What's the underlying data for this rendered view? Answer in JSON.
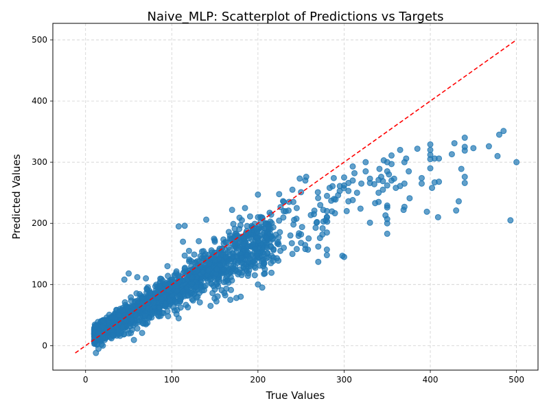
{
  "chart_data": {
    "type": "scatter",
    "title": "Naive_MLP: Scatterplot of Predictions vs Targets",
    "xlabel": "True Values",
    "ylabel": "Predicted Values",
    "xlim": [
      -38,
      525
    ],
    "ylim": [
      -40,
      527
    ],
    "xticks": [
      0,
      100,
      200,
      300,
      400,
      500
    ],
    "yticks": [
      0,
      100,
      200,
      300,
      400,
      500
    ],
    "grid": true,
    "point_color": "#1f77b4",
    "point_alpha": 0.7,
    "reference_line": {
      "color": "#ff0000",
      "style": "dashed",
      "from": [
        -12,
        -12
      ],
      "to": [
        500,
        500
      ]
    },
    "cluster_model": {
      "n_points": 1800,
      "x_min": 10,
      "x_max": 300,
      "slope_at_x": 0.78,
      "intercept": 10
    },
    "points": [
      [
        485,
        351
      ],
      [
        480,
        345
      ],
      [
        500,
        300
      ],
      [
        493,
        205
      ],
      [
        468,
        326
      ],
      [
        478,
        310
      ],
      [
        450,
        323
      ],
      [
        440,
        340
      ],
      [
        440,
        325
      ],
      [
        440,
        319
      ],
      [
        440,
        276
      ],
      [
        440,
        266
      ],
      [
        436,
        289
      ],
      [
        433,
        236
      ],
      [
        430,
        221
      ],
      [
        428,
        331
      ],
      [
        425,
        313
      ],
      [
        410,
        306
      ],
      [
        410,
        268
      ],
      [
        409,
        210
      ],
      [
        405,
        306
      ],
      [
        405,
        267
      ],
      [
        402,
        258
      ],
      [
        400,
        329
      ],
      [
        400,
        320
      ],
      [
        400,
        312
      ],
      [
        400,
        305
      ],
      [
        400,
        290
      ],
      [
        396,
        219
      ],
      [
        390,
        274
      ],
      [
        390,
        265
      ],
      [
        385,
        322
      ],
      [
        376,
        241
      ],
      [
        375,
        285
      ],
      [
        372,
        306
      ],
      [
        370,
        300
      ],
      [
        370,
        265
      ],
      [
        370,
        227
      ],
      [
        369,
        222
      ],
      [
        365,
        320
      ],
      [
        365,
        261
      ],
      [
        360,
        258
      ],
      [
        358,
        273
      ],
      [
        355,
        311
      ],
      [
        355,
        297
      ],
      [
        355,
        270
      ],
      [
        352,
        280
      ],
      [
        350,
        300
      ],
      [
        350,
        285
      ],
      [
        350,
        262
      ],
      [
        350,
        229
      ],
      [
        350,
        226
      ],
      [
        350,
        207
      ],
      [
        350,
        200
      ],
      [
        350,
        183
      ],
      [
        348,
        213
      ],
      [
        346,
        303
      ],
      [
        345,
        269
      ],
      [
        345,
        255
      ],
      [
        343,
        276
      ],
      [
        341,
        289
      ],
      [
        340,
        271
      ],
      [
        340,
        250
      ],
      [
        340,
        235
      ],
      [
        336,
        233
      ],
      [
        335,
        264
      ],
      [
        330,
        273
      ],
      [
        330,
        266
      ],
      [
        330,
        201
      ],
      [
        325,
        300
      ],
      [
        325,
        285
      ],
      [
        320,
        265
      ],
      [
        319,
        224
      ],
      [
        315,
        250
      ],
      [
        312,
        282
      ],
      [
        310,
        293
      ],
      [
        310,
        270
      ],
      [
        310,
        238
      ],
      [
        305,
        266
      ],
      [
        305,
        253
      ],
      [
        305,
        236
      ],
      [
        303,
        220
      ],
      [
        300,
        275
      ],
      [
        300,
        262
      ],
      [
        300,
        145
      ],
      [
        298,
        147
      ],
      [
        295,
        261
      ],
      [
        293,
        246
      ],
      [
        290,
        239
      ],
      [
        288,
        274
      ],
      [
        285,
        237
      ],
      [
        280,
        220
      ],
      [
        280,
        185
      ],
      [
        280,
        157
      ],
      [
        280,
        148
      ],
      [
        276,
        203
      ],
      [
        275,
        192
      ],
      [
        272,
        176
      ],
      [
        270,
        162
      ],
      [
        270,
        137
      ],
      [
        268,
        201
      ],
      [
        265,
        215
      ],
      [
        258,
        157
      ],
      [
        256,
        276
      ],
      [
        255,
        270
      ],
      [
        255,
        158
      ],
      [
        250,
        168
      ],
      [
        250,
        182
      ],
      [
        245,
        158
      ],
      [
        240,
        150
      ],
      [
        230,
        160
      ],
      [
        226,
        155
      ],
      [
        222,
        143
      ],
      [
        218,
        144
      ],
      [
        215,
        135
      ],
      [
        210,
        143
      ],
      [
        208,
        125
      ],
      [
        205,
        95
      ],
      [
        200,
        247
      ],
      [
        200,
        100
      ],
      [
        185,
        225
      ],
      [
        180,
        80
      ],
      [
        175,
        78
      ],
      [
        170,
        222
      ],
      [
        168,
        75
      ],
      [
        160,
        120
      ],
      [
        155,
        105
      ],
      [
        150,
        92
      ],
      [
        145,
        65
      ],
      [
        140,
        206
      ],
      [
        135,
        90
      ],
      [
        130,
        80
      ],
      [
        115,
        196
      ],
      [
        113,
        170
      ],
      [
        108,
        195
      ],
      [
        105,
        72
      ],
      [
        95,
        56
      ],
      [
        85,
        48
      ],
      [
        70,
        35
      ],
      [
        60,
        28
      ],
      [
        50,
        20
      ],
      [
        40,
        16
      ],
      [
        30,
        12
      ],
      [
        25,
        25
      ],
      [
        20,
        0
      ],
      [
        15,
        -5
      ],
      [
        12,
        -12
      ],
      [
        60,
        112
      ],
      [
        50,
        118
      ],
      [
        70,
        110
      ],
      [
        45,
        108
      ],
      [
        95,
        130
      ],
      [
        120,
        155
      ],
      [
        150,
        170
      ],
      [
        200,
        210
      ],
      [
        230,
        235
      ],
      [
        240,
        255
      ],
      [
        250,
        251
      ],
      [
        245,
        225
      ],
      [
        230,
        220
      ]
    ]
  }
}
